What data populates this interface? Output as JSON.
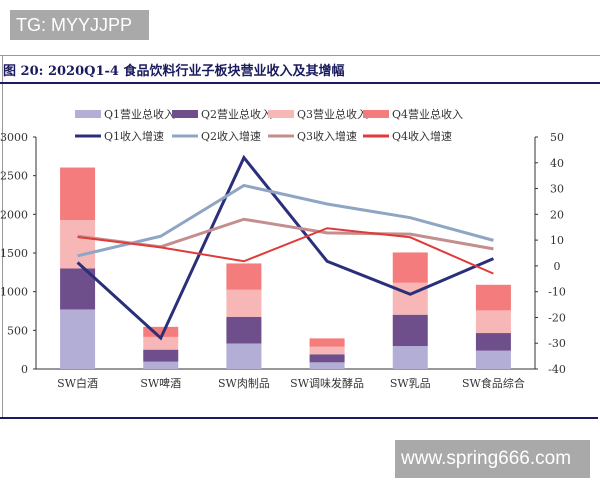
{
  "watermarks": {
    "top": "TG: MYYJJPP",
    "bottom": "www.spring666.com"
  },
  "title": "图 20:  2020Q1-4 食品饮料行业子板块营业收入及其增幅",
  "chart_data": {
    "type": "bar+line",
    "title": "图 20:  2020Q1-4 食品饮料行业子板块营业收入及其增幅",
    "categories": [
      "SW白酒",
      "SW啤酒",
      "SW肉制品",
      "SW调味发酵品",
      "SW乳品",
      "SW食品综合"
    ],
    "y_left": {
      "range": [
        0,
        3000
      ],
      "ticks": [
        0,
        500,
        1000,
        1500,
        2000,
        2500,
        3000
      ]
    },
    "y_right": {
      "range": [
        -40,
        50
      ],
      "ticks": [
        -40,
        -30,
        -20,
        -10,
        0,
        10,
        20,
        30,
        40,
        50
      ]
    },
    "bar_mode": "stacked",
    "bar_series": [
      {
        "name": "Q1营业总收入",
        "color": "#b3aed6",
        "values": [
          770,
          95,
          330,
          86,
          297,
          237
        ]
      },
      {
        "name": "Q2营业总收入",
        "color": "#6e4f8c",
        "values": [
          530,
          155,
          345,
          104,
          405,
          228
        ]
      },
      {
        "name": "Q3营业总收入",
        "color": "#f7b7b7",
        "values": [
          625,
          165,
          350,
          98,
          413,
          293
        ]
      },
      {
        "name": "Q4营业总收入",
        "color": "#f47c7c",
        "values": [
          680,
          130,
          340,
          108,
          392,
          331
        ]
      }
    ],
    "line_series": [
      {
        "name": "Q1收入增速",
        "color": "#2b2f7a",
        "values": [
          1.3,
          -28,
          42,
          1.8,
          -11,
          2.8
        ]
      },
      {
        "name": "Q2收入增速",
        "color": "#8fa5c4",
        "values": [
          3.9,
          11.5,
          31.2,
          24,
          18.7,
          9.9
        ]
      },
      {
        "name": "Q3收入增速",
        "color": "#c48e8e",
        "values": [
          11.5,
          7.4,
          18.1,
          12.8,
          12.3,
          6.6
        ]
      },
      {
        "name": "Q4收入增速",
        "color": "#e03a3a",
        "values": [
          11.2,
          7.2,
          1.8,
          14.6,
          11.1,
          -3
        ]
      }
    ],
    "legend": "top",
    "grid": false
  }
}
